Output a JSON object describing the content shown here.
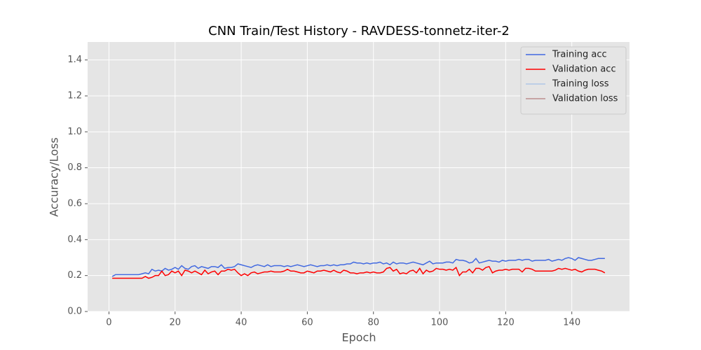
{
  "chart_data": {
    "type": "line",
    "title": "CNN Train/Test History -  RAVDESS-tonnetz-iter-2",
    "xlabel": "Epoch",
    "ylabel": "Accuracy/Loss",
    "x": [
      1,
      2,
      3,
      4,
      5,
      6,
      7,
      8,
      9,
      10,
      11,
      12,
      13,
      14,
      15,
      16,
      17,
      18,
      19,
      20,
      21,
      22,
      23,
      24,
      25,
      26,
      27,
      28,
      29,
      30,
      31,
      32,
      33,
      34,
      35,
      36,
      37,
      38,
      39,
      40,
      41,
      42,
      43,
      44,
      45,
      46,
      47,
      48,
      49,
      50,
      51,
      52,
      53,
      54,
      55,
      56,
      57,
      58,
      59,
      60,
      61,
      62,
      63,
      64,
      65,
      66,
      67,
      68,
      69,
      70,
      71,
      72,
      73,
      74,
      75,
      76,
      77,
      78,
      79,
      80,
      81,
      82,
      83,
      84,
      85,
      86,
      87,
      88,
      89,
      90,
      91,
      92,
      93,
      94,
      95,
      96,
      97,
      98,
      99,
      100,
      101,
      102,
      103,
      104,
      105,
      106,
      107,
      108,
      109,
      110,
      111,
      112,
      113,
      114,
      115,
      116,
      117,
      118,
      119,
      120,
      121,
      122,
      123,
      124,
      125,
      126,
      127,
      128,
      129,
      130,
      131,
      132,
      133,
      134,
      135,
      136,
      137,
      138,
      139,
      140,
      141,
      142,
      143,
      144,
      145,
      146,
      147,
      148,
      149,
      150
    ],
    "series": [
      {
        "name": "Training acc",
        "color": "#4169e1",
        "values": [
          0.195,
          0.205,
          0.205,
          0.205,
          0.205,
          0.205,
          0.205,
          0.205,
          0.205,
          0.21,
          0.215,
          0.21,
          0.235,
          0.225,
          0.23,
          0.225,
          0.24,
          0.23,
          0.235,
          0.245,
          0.235,
          0.255,
          0.24,
          0.235,
          0.25,
          0.255,
          0.24,
          0.25,
          0.245,
          0.24,
          0.25,
          0.25,
          0.245,
          0.26,
          0.24,
          0.245,
          0.245,
          0.25,
          0.265,
          0.26,
          0.255,
          0.25,
          0.245,
          0.255,
          0.26,
          0.255,
          0.25,
          0.26,
          0.25,
          0.255,
          0.255,
          0.255,
          0.25,
          0.255,
          0.25,
          0.255,
          0.26,
          0.255,
          0.25,
          0.255,
          0.26,
          0.255,
          0.25,
          0.255,
          0.255,
          0.26,
          0.255,
          0.26,
          0.255,
          0.26,
          0.26,
          0.265,
          0.265,
          0.275,
          0.27,
          0.27,
          0.265,
          0.27,
          0.265,
          0.27,
          0.27,
          0.275,
          0.265,
          0.27,
          0.26,
          0.275,
          0.265,
          0.27,
          0.27,
          0.265,
          0.27,
          0.275,
          0.27,
          0.265,
          0.26,
          0.27,
          0.28,
          0.265,
          0.27,
          0.27,
          0.27,
          0.275,
          0.275,
          0.27,
          0.29,
          0.285,
          0.285,
          0.28,
          0.27,
          0.275,
          0.295,
          0.27,
          0.275,
          0.28,
          0.285,
          0.28,
          0.28,
          0.275,
          0.285,
          0.28,
          0.285,
          0.285,
          0.285,
          0.29,
          0.285,
          0.29,
          0.29,
          0.28,
          0.285,
          0.285,
          0.285,
          0.285,
          0.29,
          0.28,
          0.285,
          0.29,
          0.285,
          0.295,
          0.3,
          0.295,
          0.285,
          0.3,
          0.295,
          0.29,
          0.285,
          0.285,
          0.29,
          0.295,
          0.295,
          0.295
        ]
      },
      {
        "name": "Validation acc",
        "color": "#ff0000",
        "values": [
          0.185,
          0.185,
          0.185,
          0.185,
          0.185,
          0.185,
          0.185,
          0.185,
          0.185,
          0.185,
          0.195,
          0.185,
          0.19,
          0.2,
          0.2,
          0.225,
          0.2,
          0.205,
          0.225,
          0.215,
          0.225,
          0.2,
          0.23,
          0.225,
          0.215,
          0.225,
          0.215,
          0.205,
          0.23,
          0.21,
          0.22,
          0.225,
          0.205,
          0.225,
          0.225,
          0.235,
          0.23,
          0.235,
          0.215,
          0.2,
          0.21,
          0.2,
          0.215,
          0.22,
          0.21,
          0.215,
          0.22,
          0.22,
          0.225,
          0.22,
          0.22,
          0.22,
          0.225,
          0.235,
          0.225,
          0.225,
          0.22,
          0.215,
          0.215,
          0.225,
          0.22,
          0.215,
          0.225,
          0.225,
          0.23,
          0.225,
          0.22,
          0.23,
          0.22,
          0.215,
          0.23,
          0.225,
          0.215,
          0.215,
          0.21,
          0.215,
          0.215,
          0.22,
          0.215,
          0.22,
          0.215,
          0.215,
          0.22,
          0.24,
          0.245,
          0.225,
          0.235,
          0.21,
          0.215,
          0.21,
          0.225,
          0.23,
          0.215,
          0.24,
          0.21,
          0.23,
          0.22,
          0.225,
          0.24,
          0.235,
          0.235,
          0.23,
          0.235,
          0.23,
          0.245,
          0.2,
          0.22,
          0.22,
          0.235,
          0.215,
          0.24,
          0.24,
          0.23,
          0.245,
          0.25,
          0.215,
          0.225,
          0.23,
          0.23,
          0.235,
          0.23,
          0.235,
          0.235,
          0.235,
          0.22,
          0.24,
          0.24,
          0.235,
          0.225,
          0.225,
          0.225,
          0.225,
          0.225,
          0.225,
          0.23,
          0.24,
          0.235,
          0.24,
          0.235,
          0.23,
          0.235,
          0.225,
          0.22,
          0.23,
          0.235,
          0.235,
          0.235,
          0.23,
          0.225,
          0.215
        ]
      },
      {
        "name": "Training loss",
        "color": "#aec7e8",
        "values": [
          null,
          null,
          null,
          null,
          null,
          null,
          null,
          null,
          null,
          null,
          null,
          null,
          null,
          null,
          null,
          null,
          null,
          null,
          null,
          null,
          null,
          null,
          null,
          null,
          null,
          null,
          null,
          null,
          null,
          null,
          null,
          null,
          null,
          null,
          null,
          null,
          null,
          null,
          null,
          null,
          null,
          null,
          null,
          null,
          null,
          null,
          null,
          null,
          null,
          null,
          null,
          null,
          null,
          null,
          null,
          null,
          null,
          null,
          null,
          null,
          null,
          null,
          null,
          null,
          null,
          null,
          null,
          null,
          null,
          null,
          null,
          null,
          null,
          null,
          null,
          null,
          null,
          null,
          null,
          null,
          null,
          null,
          null,
          null,
          null,
          null,
          null,
          null,
          null,
          null,
          null,
          null,
          null,
          null,
          null,
          null,
          null,
          null,
          null,
          null,
          null,
          null,
          null,
          null,
          null,
          null,
          null,
          null,
          null,
          null,
          null,
          null,
          null,
          null,
          null,
          null,
          null,
          null,
          null,
          null,
          null,
          null,
          null,
          null,
          null,
          null,
          null,
          null,
          null,
          null,
          null,
          null,
          null,
          null,
          null,
          null,
          null,
          null,
          null,
          null,
          null,
          null,
          null,
          null,
          null,
          null,
          null,
          null,
          null,
          null
        ]
      },
      {
        "name": "Validation loss",
        "color": "#bc8f8f",
        "values": [
          null,
          null,
          null,
          null,
          null,
          null,
          null,
          null,
          null,
          null,
          null,
          null,
          null,
          null,
          null,
          null,
          null,
          null,
          null,
          null,
          null,
          null,
          null,
          null,
          null,
          null,
          null,
          null,
          null,
          null,
          null,
          null,
          null,
          null,
          null,
          null,
          null,
          null,
          null,
          null,
          null,
          null,
          null,
          null,
          null,
          null,
          null,
          null,
          null,
          null,
          null,
          null,
          null,
          null,
          null,
          null,
          null,
          null,
          null,
          null,
          null,
          null,
          null,
          null,
          null,
          null,
          null,
          null,
          null,
          null,
          null,
          null,
          null,
          null,
          null,
          null,
          null,
          null,
          null,
          null,
          null,
          null,
          null,
          null,
          null,
          null,
          null,
          null,
          null,
          null,
          null,
          null,
          null,
          null,
          null,
          null,
          null,
          null,
          null,
          null,
          null,
          null,
          null,
          null,
          null,
          null,
          null,
          null,
          null,
          null,
          null,
          null,
          null,
          null,
          null,
          null,
          null,
          null,
          null,
          null,
          null,
          null,
          null,
          null,
          null,
          null,
          null,
          null,
          null,
          null,
          null,
          null,
          null,
          null,
          null,
          null,
          null,
          null,
          null,
          null,
          null,
          null,
          null,
          null,
          null,
          null,
          null,
          null,
          null,
          null
        ]
      }
    ],
    "xlim": [
      -6.45,
      157.45
    ],
    "xticks": [
      0,
      20,
      40,
      60,
      80,
      100,
      120,
      140
    ],
    "ylim": [
      0,
      1.5
    ],
    "yticks": [
      {
        "value": 0,
        "label": "0.0"
      },
      0.2,
      0.4,
      0.6,
      0.8,
      {
        "value": 1,
        "label": "1.0"
      },
      1.2,
      1.4
    ],
    "grid": true,
    "legend": "upper right"
  }
}
